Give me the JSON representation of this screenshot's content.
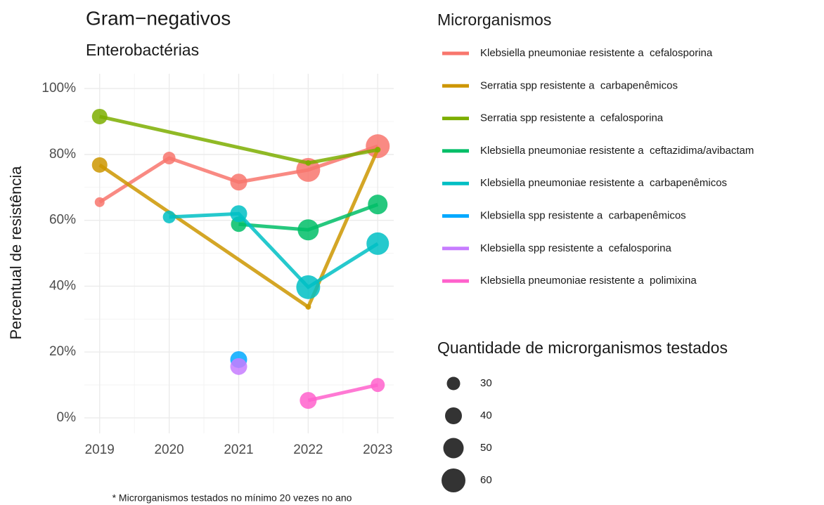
{
  "chart_data": {
    "type": "line",
    "title": "Gram−negativos",
    "subtitle": "Enterobactérias",
    "y_label": "Percentual de resistência",
    "caption": "* Microrganismos testados no mínimo 20 vezes no ano",
    "legend_title": "Microrganismos",
    "size_legend_title": "Quantidade de microrganismos testados",
    "size_legend_values": [
      30,
      40,
      50,
      60
    ],
    "xlim": [
      2018.78,
      2023.23
    ],
    "xticks": [
      2019,
      2020,
      2021,
      2022,
      2023
    ],
    "ylim": [
      -4.7,
      104.5
    ],
    "yticks": [
      {
        "value": 0,
        "label": "0%"
      },
      {
        "value": 20,
        "label": "20%"
      },
      {
        "value": 40,
        "label": "40%"
      },
      {
        "value": 60,
        "label": "60%"
      },
      {
        "value": 80,
        "label": "80%"
      },
      {
        "value": 100,
        "label": "100%"
      }
    ],
    "grid": true,
    "series": [
      {
        "name": "Klebsiella pneumoniae resistente a  cefalosporina",
        "color": "#F8766D",
        "x": [
          2019,
          2020,
          2021,
          2022,
          2023
        ],
        "values": [
          65.5,
          78.9,
          71.6,
          75.3,
          82.5
        ],
        "sizes": [
          20,
          28,
          40,
          60,
          60
        ]
      },
      {
        "name": "Serratia spp resistente a  carbapenêmicos",
        "color": "#CD9600",
        "x": [
          2019,
          2022,
          2023
        ],
        "values": [
          76.8,
          33.7,
          81.5
        ],
        "sizes": [
          36,
          8,
          8
        ]
      },
      {
        "name": "Serratia spp resistente a  cefalosporina",
        "color": "#7CAE00",
        "x": [
          2019,
          2022,
          2023
        ],
        "values": [
          91.5,
          77.4,
          81.4
        ],
        "sizes": [
          36,
          8,
          8
        ]
      },
      {
        "name": "Klebsiella pneumoniae resistente a  ceftazidima/avibactam",
        "color": "#00BE67",
        "x": [
          2021,
          2022,
          2023
        ],
        "values": [
          58.8,
          57.1,
          64.8
        ],
        "sizes": [
          36,
          52,
          48
        ]
      },
      {
        "name": "Klebsiella pneumoniae resistente a  carbapenêmicos",
        "color": "#00BFC4",
        "x": [
          2020,
          2021,
          2022,
          2023
        ],
        "values": [
          61.0,
          62.0,
          39.7,
          52.9
        ],
        "sizes": [
          28,
          40,
          60,
          56
        ]
      },
      {
        "name": "Klebsiella spp resistente a  carbapenêmicos",
        "color": "#00A9FF",
        "x": [
          2021
        ],
        "values": [
          17.7
        ],
        "sizes": [
          40
        ]
      },
      {
        "name": "Klebsiella spp resistente a  cefalosporina",
        "color": "#C77CFF",
        "x": [
          2021
        ],
        "values": [
          15.6
        ],
        "sizes": [
          40
        ]
      },
      {
        "name": "Klebsiella pneumoniae resistente a  polimixina",
        "color": "#FF61CC",
        "x": [
          2022,
          2023
        ],
        "values": [
          5.3,
          10.0
        ],
        "sizes": [
          40,
          32
        ]
      }
    ]
  }
}
